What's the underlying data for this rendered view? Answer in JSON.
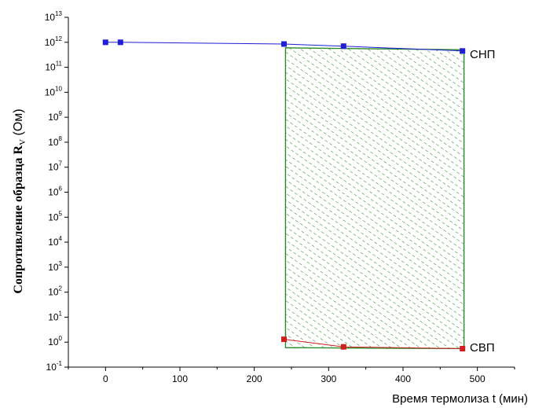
{
  "chart_data": {
    "type": "scatter",
    "xlabel": "Время термолиза t (мин)",
    "ylabel": {
      "main": "Сопротивление образца  R",
      "subscript": "V",
      "unit": " (Ом)"
    },
    "x_axis": {
      "range": [
        -50,
        550
      ],
      "ticks": [
        0,
        100,
        200,
        300,
        400,
        500
      ],
      "tick_labels": [
        "0",
        "100",
        "200",
        "300",
        "400",
        "500"
      ]
    },
    "y_axis": {
      "scale": "log",
      "range": [
        0.1,
        10000000000000.0
      ],
      "ticks": [
        {
          "base": "10",
          "exp": "-1",
          "value": 0.1
        },
        {
          "base": "10",
          "exp": "0",
          "value": 1
        },
        {
          "base": "10",
          "exp": "1",
          "value": 10
        },
        {
          "base": "10",
          "exp": "2",
          "value": 100
        },
        {
          "base": "10",
          "exp": "3",
          "value": 1000
        },
        {
          "base": "10",
          "exp": "4",
          "value": 10000
        },
        {
          "base": "10",
          "exp": "5",
          "value": 100000
        },
        {
          "base": "10",
          "exp": "6",
          "value": 1000000
        },
        {
          "base": "10",
          "exp": "7",
          "value": 10000000
        },
        {
          "base": "10",
          "exp": "8",
          "value": 100000000
        },
        {
          "base": "10",
          "exp": "9",
          "value": 1000000000
        },
        {
          "base": "10",
          "exp": "10",
          "value": 10000000000
        },
        {
          "base": "10",
          "exp": "11",
          "value": 100000000000
        },
        {
          "base": "10",
          "exp": "12",
          "value": 1000000000000
        },
        {
          "base": "10",
          "exp": "13",
          "value": 10000000000000
        }
      ]
    },
    "series": [
      {
        "name": "СНП",
        "color": "#1f1fd6",
        "points": [
          {
            "x": 0,
            "y": 1000000000000.0
          },
          {
            "x": 20,
            "y": 1000000000000.0
          },
          {
            "x": 240,
            "y": 850000000000.0
          },
          {
            "x": 320,
            "y": 700000000000.0
          },
          {
            "x": 480,
            "y": 450000000000.0
          }
        ]
      },
      {
        "name": "СВП",
        "color": "#d01f1f",
        "points": [
          {
            "x": 240,
            "y": 1.3
          },
          {
            "x": 320,
            "y": 0.65
          },
          {
            "x": 480,
            "y": 0.55
          }
        ]
      }
    ],
    "hatched_region": {
      "color": "#2a8a2a",
      "x_range": [
        242,
        482
      ],
      "top": [
        {
          "x": 242,
          "y": 600000000000.0
        },
        {
          "x": 482,
          "y": 500000000000.0
        }
      ],
      "bottom": [
        {
          "x": 242,
          "y": 0.6
        },
        {
          "x": 482,
          "y": 0.55
        }
      ]
    }
  }
}
